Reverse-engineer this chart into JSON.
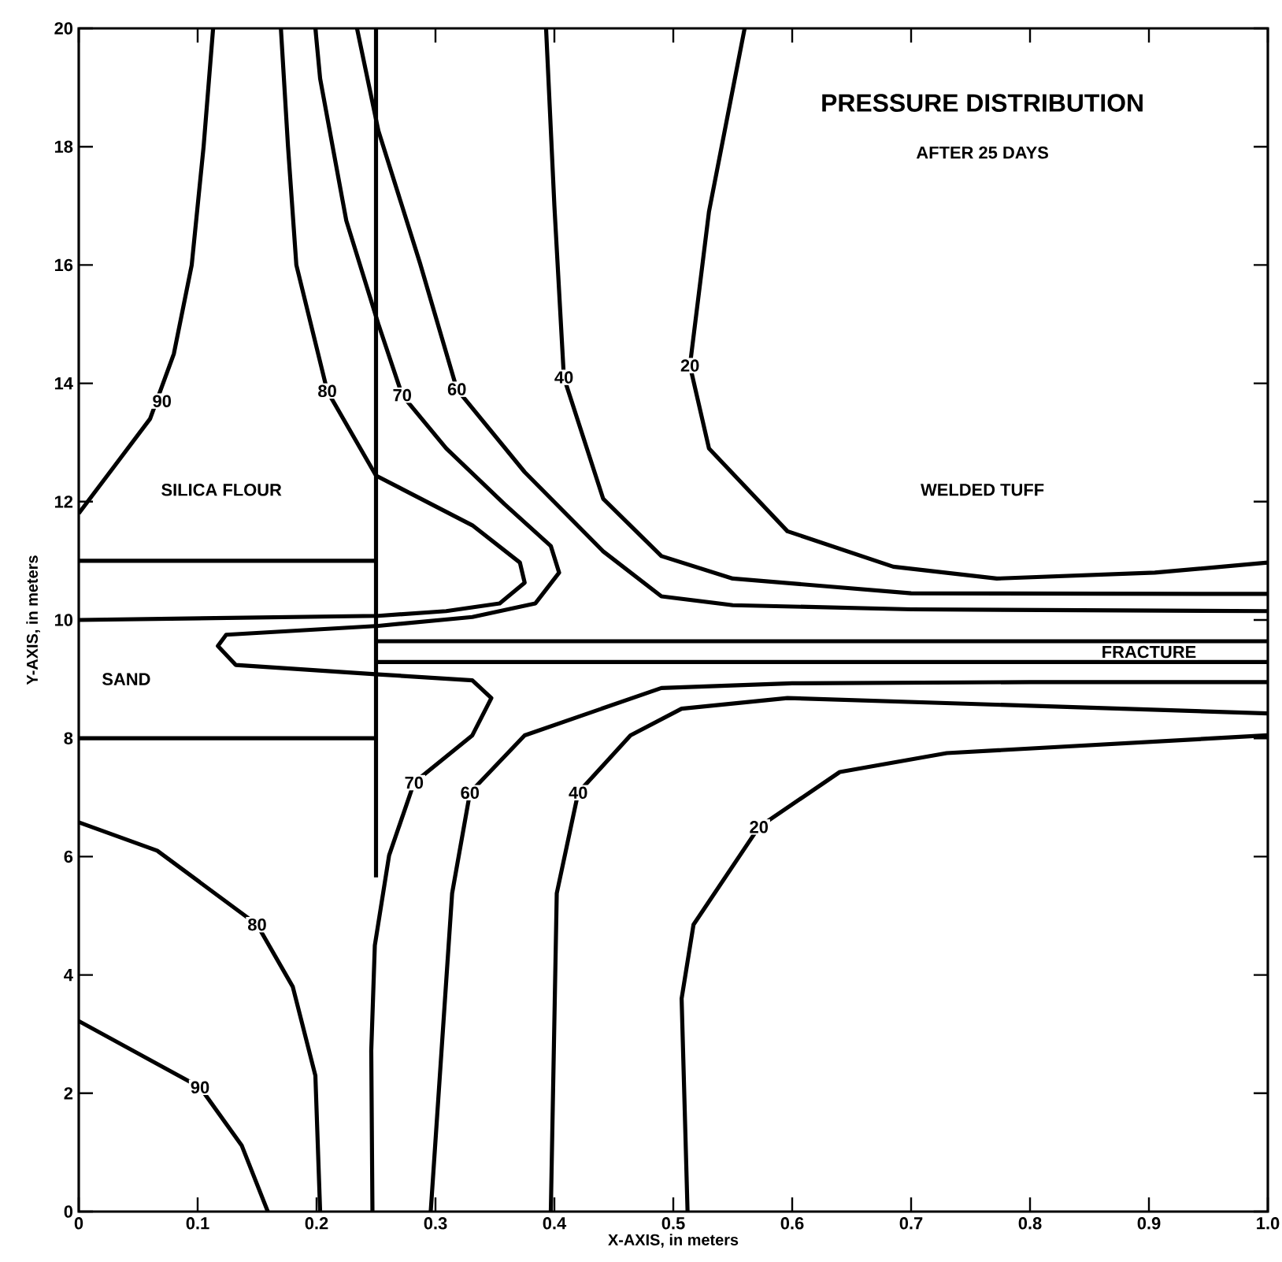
{
  "chart_data": {
    "type": "line",
    "title": "PRESSURE DISTRIBUTION",
    "subtitle": "AFTER 25 DAYS",
    "xlabel": "X-AXIS, in meters",
    "ylabel": "Y-AXIS, in meters",
    "xlim": [
      0,
      1
    ],
    "ylim": [
      0,
      20
    ],
    "xticks": [
      0,
      0.1,
      0.2,
      0.3,
      0.4,
      0.5,
      0.6,
      0.7,
      0.8,
      0.9,
      {
        "value": 1,
        "label": "1.0"
      }
    ],
    "yticks": [
      0,
      2,
      4,
      6,
      8,
      10,
      12,
      14,
      16,
      18,
      20
    ],
    "grid": false,
    "marker": "none",
    "line_style": "solid",
    "series": [
      {
        "color": "#000000",
        "x": [
          0,
          0.03,
          0.06,
          0.08,
          0.095,
          0.105,
          0.113
        ],
        "values": [
          11.8,
          12.6,
          13.4,
          14.5,
          16,
          18,
          20
        ]
      },
      {
        "color": "#000000",
        "x": [
          0.17,
          0.176,
          0.183,
          0.209,
          0.25,
          0.331,
          0.371,
          0.375,
          0.354,
          0.309,
          0.252,
          0
        ],
        "values": [
          20,
          18,
          16,
          13.87,
          12.44,
          11.6,
          10.97,
          10.63,
          10.28,
          10.15,
          10.07,
          10.0
        ]
      },
      {
        "color": "#000000",
        "x": [
          0.199,
          0.203,
          0.225,
          0.252,
          0.272,
          0.309,
          0.358,
          0.397,
          0.404,
          0.384,
          0.331,
          0.252,
          0.124,
          0.117,
          0.132,
          0.252,
          0.331,
          0.347,
          0.331,
          0.282,
          0.261,
          0.249,
          0.246,
          0.247
        ],
        "values": [
          20,
          19.15,
          16.75,
          15.0,
          13.8,
          12.9,
          11.96,
          11.25,
          10.8,
          10.28,
          10.05,
          9.9,
          9.75,
          9.56,
          9.24,
          9.08,
          8.98,
          8.68,
          8.05,
          7.25,
          6.02,
          4.5,
          2.72,
          0
        ]
      },
      {
        "color": "#000000",
        "x": [
          0.234,
          0.252,
          0.287,
          0.318,
          0.375,
          0.441,
          0.49,
          0.55,
          0.7,
          1.0
        ],
        "values": [
          20,
          18.27,
          16.03,
          13.9,
          12.5,
          11.16,
          10.4,
          10.25,
          10.18,
          10.15
        ]
      },
      {
        "color": "#000000",
        "x": [
          0.393,
          0.4,
          0.408,
          0.441,
          0.49,
          0.55,
          0.7,
          1.0
        ],
        "values": [
          20,
          17,
          14.1,
          12.05,
          11.08,
          10.7,
          10.45,
          10.44
        ]
      },
      {
        "color": "#000000",
        "x": [
          0.56,
          0.53,
          0.514,
          0.53,
          0.596,
          0.685,
          0.772,
          0.905,
          1.0
        ],
        "values": [
          20,
          16.9,
          14.3,
          12.9,
          11.5,
          10.9,
          10.7,
          10.8,
          10.97
        ]
      },
      {
        "color": "#000000",
        "x": [
          0,
          0.066,
          0.15,
          0.18,
          0.199,
          0.203
        ],
        "values": [
          6.58,
          6.1,
          4.85,
          3.8,
          2.3,
          0
        ]
      },
      {
        "color": "#000000",
        "x": [
          0,
          0.102,
          0.137,
          0.159
        ],
        "values": [
          3.22,
          2.1,
          1.12,
          0
        ]
      },
      {
        "color": "#000000",
        "x": [
          0.296,
          0.314,
          0.329,
          0.375,
          0.49,
          0.6,
          0.8,
          1.0
        ],
        "values": [
          0,
          5.38,
          7.08,
          8.05,
          8.85,
          8.93,
          8.95,
          8.95
        ]
      },
      {
        "color": "#000000",
        "x": [
          0.397,
          0.402,
          0.42,
          0.464,
          0.507,
          0.596,
          0.8,
          1.0
        ],
        "values": [
          0,
          5.38,
          7.08,
          8.05,
          8.5,
          8.68,
          8.55,
          8.42
        ]
      },
      {
        "color": "#000000",
        "x": [
          0.512,
          0.507,
          0.517,
          0.572,
          0.64,
          0.73,
          1.0
        ],
        "values": [
          0,
          3.6,
          4.85,
          6.5,
          7.43,
          7.75,
          8.05
        ]
      },
      {
        "color": "#000000",
        "x": [
          0,
          0.25
        ],
        "values": [
          11,
          11
        ]
      },
      {
        "color": "#000000",
        "x": [
          0,
          0.25
        ],
        "values": [
          8,
          8
        ]
      },
      {
        "color": "#000000",
        "x": [
          0.25,
          0.25
        ],
        "values": [
          5.65,
          20
        ]
      },
      {
        "color": "#000000",
        "x": [
          0.25,
          1.0
        ],
        "values": [
          9.29,
          9.29
        ]
      },
      {
        "color": "#000000",
        "x": [
          0.25,
          1.0
        ],
        "values": [
          9.64,
          9.64
        ]
      }
    ],
    "annotations": [
      {
        "text": "90",
        "x": 0.07,
        "y": 13.7
      },
      {
        "text": "80",
        "x": 0.209,
        "y": 13.87
      },
      {
        "text": "70",
        "x": 0.272,
        "y": 13.8
      },
      {
        "text": "60",
        "x": 0.318,
        "y": 13.9
      },
      {
        "text": "40",
        "x": 0.408,
        "y": 14.1
      },
      {
        "text": "20",
        "x": 0.514,
        "y": 14.3
      },
      {
        "text": "80",
        "x": 0.15,
        "y": 4.85
      },
      {
        "text": "90",
        "x": 0.102,
        "y": 2.1
      },
      {
        "text": "70",
        "x": 0.282,
        "y": 7.25
      },
      {
        "text": "60",
        "x": 0.329,
        "y": 7.08
      },
      {
        "text": "40",
        "x": 0.42,
        "y": 7.08
      },
      {
        "text": "20",
        "x": 0.572,
        "y": 6.5
      },
      "SILICA FLOUR",
      "SAND",
      "WELDED TUFF",
      "FRACTURE"
    ]
  }
}
